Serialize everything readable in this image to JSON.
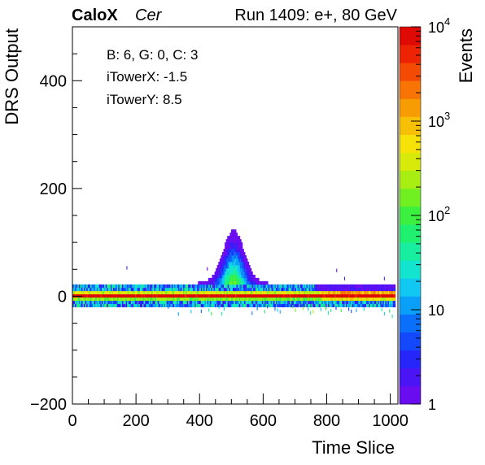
{
  "chart_data": {
    "type": "heatmap",
    "brand": "CaloX",
    "channel": "Cer",
    "run_label": "Run 1409: e+, 80 GeV",
    "xlabel": "Time Slice",
    "ylabel": "DRS Output",
    "zlabel": "Events",
    "xlim": [
      0,
      1024
    ],
    "ylim": [
      -200,
      500
    ],
    "x_ticks": [
      "0",
      "200",
      "400",
      "600",
      "800",
      "1000"
    ],
    "y_ticks": [
      "−200",
      "0",
      "200",
      "400"
    ],
    "z_scale": "log",
    "zlim": [
      1,
      10000
    ],
    "z_ticks": [
      {
        "base": "1",
        "exp": "",
        "value": 1
      },
      {
        "base": "10",
        "exp": "",
        "value": 10
      },
      {
        "base": "10",
        "exp": "2",
        "value": 100
      },
      {
        "base": "10",
        "exp": "3",
        "value": 1000
      },
      {
        "base": "10",
        "exp": "4",
        "value": 10000
      }
    ],
    "annotations": [
      "B: 6, G: 0, C: 3",
      "iTowerX: -1.5",
      "iTowerY: 8.5"
    ],
    "palette": [
      "#6a0cf0",
      "#4a14f5",
      "#2626fa",
      "#1448fb",
      "#0a70fc",
      "#0aa0fa",
      "#10c8f2",
      "#12e4d0",
      "#18eea0",
      "#20f070",
      "#3cf040",
      "#70f020",
      "#a8ee12",
      "#d8ea0a",
      "#f6e206",
      "#f8c004",
      "#f89c04",
      "#f87404",
      "#f44a04",
      "#ec2404",
      "#e00a04"
    ],
    "band": {
      "x_start": 0,
      "x_end": 1016,
      "core_y": [
        -6,
        4
      ],
      "inner_y": [
        -12,
        10
      ],
      "outer_y": [
        -20,
        22
      ],
      "core_level": 10000,
      "inner_level": 500,
      "outer_level": 10
    },
    "pulse": {
      "x_center": 505,
      "x_halfwidth": 110,
      "peak_y": 120
    },
    "sparse": [
      {
        "x": 170,
        "y": 50,
        "z": 1
      },
      {
        "x": 423,
        "y": 48,
        "z": 1
      },
      {
        "x": 830,
        "y": 45,
        "z": 1
      },
      {
        "x": 855,
        "y": 30,
        "z": 2
      },
      {
        "x": 980,
        "y": 30,
        "z": 3
      },
      {
        "x": 1005,
        "y": -40,
        "z": 50
      }
    ]
  }
}
